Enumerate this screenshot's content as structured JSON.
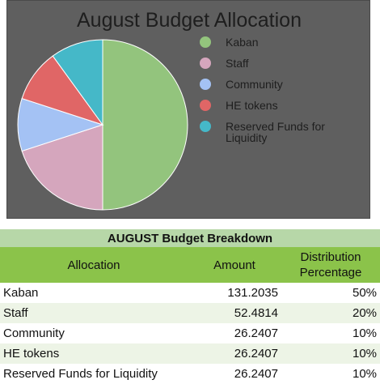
{
  "chart_data": {
    "type": "pie",
    "title": "August Budget Allocation",
    "legend_position": "right",
    "slices": [
      {
        "label": "Kaban",
        "value": 50,
        "color": "#93c47d"
      },
      {
        "label": "Staff",
        "value": 20,
        "color": "#d5a6bd"
      },
      {
        "label": "Community",
        "value": 10,
        "color": "#a4c2f4"
      },
      {
        "label": "HE tokens",
        "value": 10,
        "color": "#e06666"
      },
      {
        "label": "Reserved Funds for Liquidity",
        "value": 10,
        "color": "#45b8c8"
      }
    ]
  },
  "table": {
    "title": "AUGUST Budget Breakdown",
    "headers": [
      "Allocation",
      "Amount",
      "Distribution Percentage"
    ],
    "rows": [
      {
        "allocation": "Kaban",
        "amount": "131.2035",
        "percentage": "50%"
      },
      {
        "allocation": "Staff",
        "amount": "52.4814",
        "percentage": "20%"
      },
      {
        "allocation": "Community",
        "amount": "26.2407",
        "percentage": "10%"
      },
      {
        "allocation": "HE tokens",
        "amount": "26.2407",
        "percentage": "10%"
      },
      {
        "allocation": "Reserved Funds for Liquidity",
        "amount": "26.2407",
        "percentage": "10%"
      }
    ]
  }
}
